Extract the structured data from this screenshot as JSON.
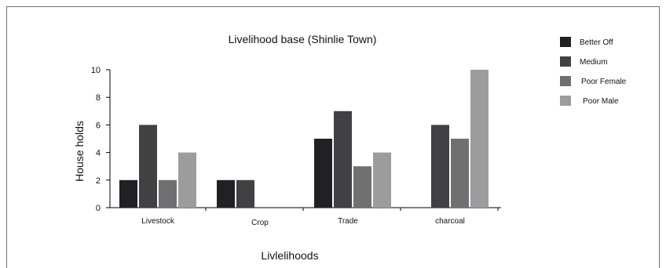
{
  "chart_data": {
    "type": "bar",
    "title": "Livelihood base (Shinlie Town)",
    "xlabel": "Livlelihoods",
    "ylabel": "House holds",
    "categories": [
      "Livestock",
      "Crop",
      "Trade",
      "charcoal"
    ],
    "ylim": [
      0,
      10
    ],
    "yticks": [
      0,
      2,
      4,
      6,
      8,
      10
    ],
    "grid": false,
    "legend_position": "right",
    "series": [
      {
        "name": "Better Off",
        "color": "#222024",
        "values": [
          2,
          2,
          5,
          0
        ]
      },
      {
        "name": "Medium",
        "color": "#414143",
        "values": [
          6,
          2,
          7,
          6
        ]
      },
      {
        "name": "Poor Female",
        "color": "#707072",
        "values": [
          2,
          0,
          3,
          5
        ]
      },
      {
        "name": "Poor Male",
        "color": "#9c9c9e",
        "values": [
          4,
          0,
          4,
          10
        ]
      }
    ]
  }
}
